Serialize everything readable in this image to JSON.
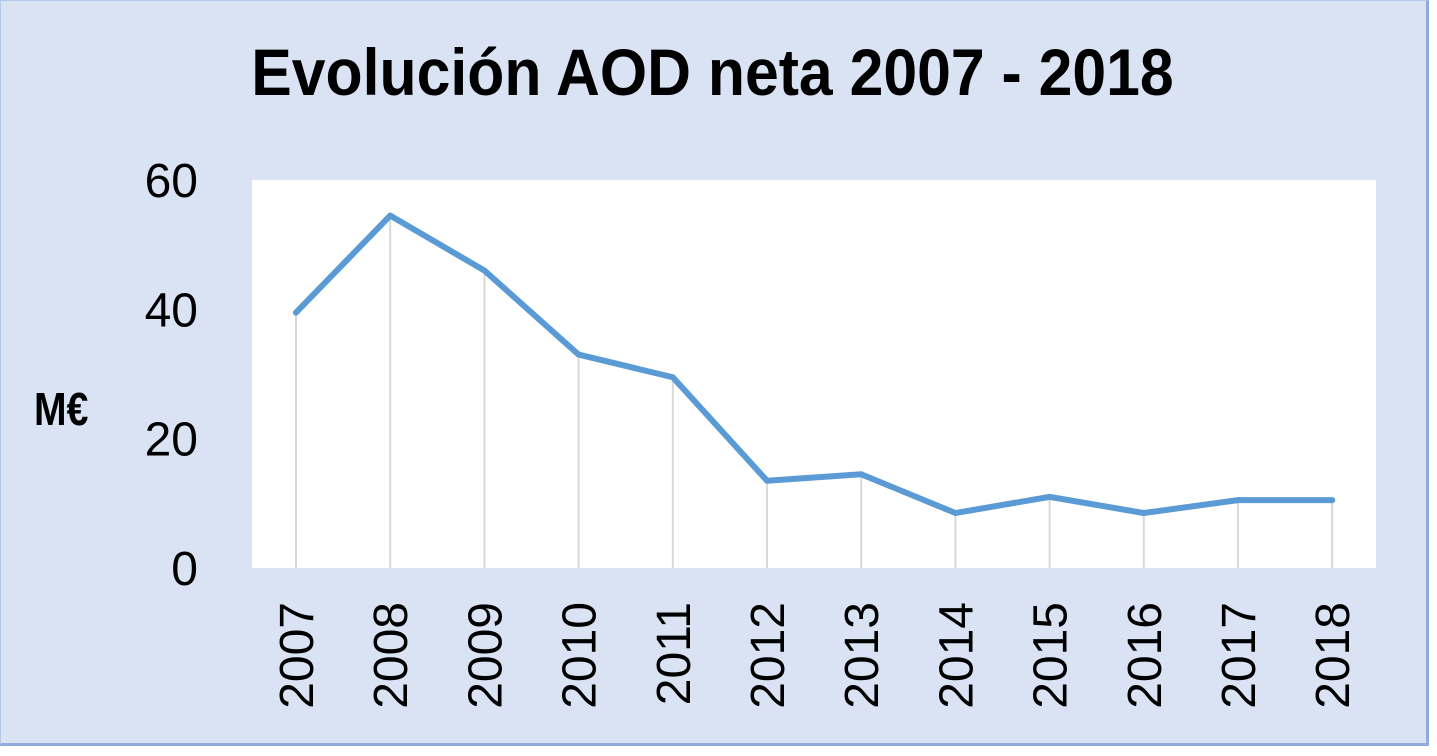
{
  "chart_data": {
    "type": "line",
    "title": "Evolución AOD neta 2007 - 2018",
    "ylabel": "M€",
    "xlabel": "",
    "categories": [
      "2007",
      "2008",
      "2009",
      "2010",
      "2011",
      "2012",
      "2013",
      "2014",
      "2015",
      "2016",
      "2017",
      "2018"
    ],
    "series": [
      {
        "values": [
          39.5,
          54.5,
          46.0,
          33.0,
          29.5,
          13.5,
          14.5,
          8.5,
          11.0,
          8.5,
          10.5,
          10.5
        ]
      }
    ],
    "ylim": [
      0,
      60
    ],
    "yticks": [
      "0",
      "20",
      "40",
      "60"
    ],
    "grid": "vertical drop lines",
    "legend": "none",
    "colors": {
      "line": "#5b9bd5",
      "background": "#dae3f3",
      "plot": "#ffffff",
      "droplines": "#d9d9d9"
    }
  }
}
